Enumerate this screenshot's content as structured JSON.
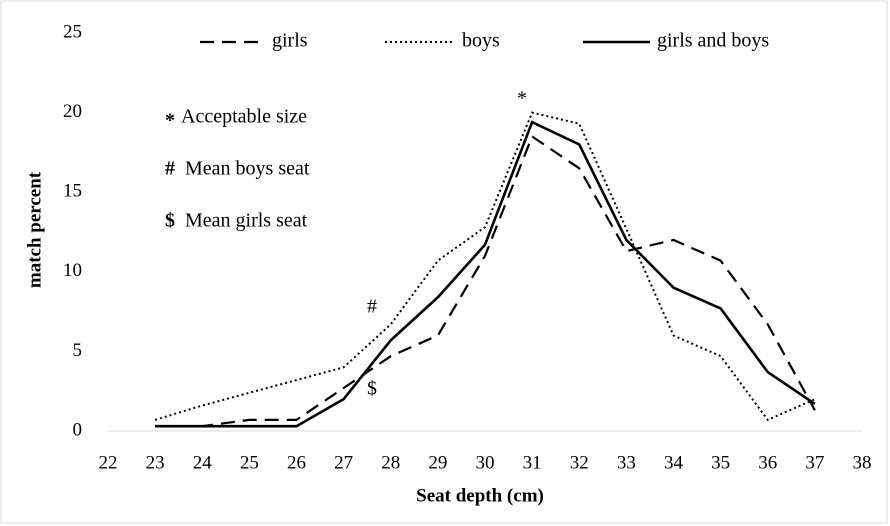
{
  "chart_data": {
    "type": "line",
    "x_label": "Seat depth  (cm)",
    "y_label": "match percent",
    "x": [
      23,
      24,
      25,
      26,
      27,
      28,
      29,
      30,
      31,
      32,
      33,
      34,
      35,
      36,
      37
    ],
    "series": [
      {
        "name": "girls",
        "color": "#000000",
        "style": "dashed",
        "values": [
          0.3,
          0.3,
          0.7,
          0.7,
          2.7,
          4.7,
          6,
          11,
          18.5,
          16.5,
          11.3,
          12,
          10.7,
          6.7,
          1.3
        ]
      },
      {
        "name": "boys",
        "color": "#000000",
        "style": "dotted",
        "values": [
          0.7,
          1.6,
          2.4,
          3.2,
          4,
          6.7,
          10.7,
          12.8,
          20,
          19.3,
          12.7,
          6,
          4.7,
          0.7,
          2
        ]
      },
      {
        "name": "girls and boys",
        "color": "#000000",
        "style": "solid",
        "values": [
          0.3,
          0.3,
          0.3,
          0.3,
          2,
          5.7,
          8.4,
          11.7,
          19.4,
          18,
          12,
          9,
          7.7,
          3.7,
          1.7
        ]
      }
    ],
    "xlim": [
      22,
      38
    ],
    "xticks": [
      22,
      23,
      24,
      25,
      26,
      27,
      28,
      29,
      30,
      31,
      32,
      33,
      34,
      35,
      36,
      37,
      38
    ],
    "ylim": [
      0,
      25
    ],
    "yticks": [
      0,
      5,
      10,
      15,
      20,
      25
    ],
    "grid": false,
    "legend": "top",
    "annotations": [
      {
        "symbol": "*",
        "text": "Acceptable size"
      },
      {
        "symbol": "#",
        "text": "Mean boys seat"
      },
      {
        "symbol": "$",
        "text": "Mean girls seat"
      }
    ]
  }
}
